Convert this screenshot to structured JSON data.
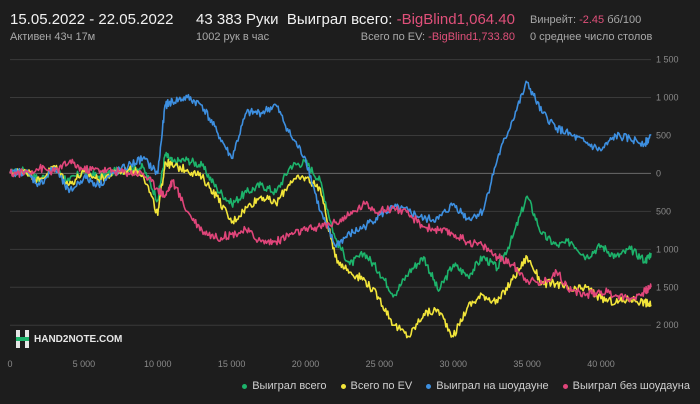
{
  "header": {
    "date_range": "15.05.2022 - 22.05.2022",
    "active": "Активен 43ч 17м",
    "hands": "43 383 Руки",
    "hands_per_hour": "1002 рук в час",
    "won_total_label": "Выиграл всего:",
    "won_total_value": "-BigBlind1,064.40",
    "ev_total_label": "Всего по EV:",
    "ev_total_value": "-BigBlind1,733.80",
    "winrate_label": "Винрейт:",
    "winrate_value": "-2.45",
    "winrate_unit": "бб/100",
    "tables": "0 среднее число столов"
  },
  "logo": {
    "text": "HAND2NOTE.COM"
  },
  "colors": {
    "won": "#1db36b",
    "ev": "#f2e53a",
    "showdown": "#3d8fe0",
    "non_showdown": "#e0457a",
    "negative": "#e0507a"
  },
  "chart_data": {
    "type": "line",
    "title": "",
    "xlabel": "",
    "ylabel": "",
    "xlim": [
      0,
      43383
    ],
    "ylim": [
      -2300,
      1600
    ],
    "y_inverted_label_note": "",
    "x_ticks": [
      0,
      5000,
      10000,
      15000,
      20000,
      25000,
      30000,
      35000,
      40000
    ],
    "x_tick_labels": [
      "0",
      "5 000",
      "10 000",
      "15 000",
      "20 000",
      "25 000",
      "30 000",
      "35 000",
      "40 000"
    ],
    "y_ticks": [
      1500,
      1000,
      500,
      0,
      -500,
      -1000,
      -1500,
      -2000
    ],
    "y_tick_labels": [
      "1 500",
      "1 000",
      "500",
      "0",
      "500",
      "1 000",
      "1 500",
      "2 000"
    ],
    "x": [
      0,
      1000,
      2000,
      3000,
      4000,
      5000,
      6000,
      7000,
      8000,
      9000,
      10000,
      10500,
      11000,
      12000,
      13000,
      14000,
      15000,
      16000,
      17000,
      18000,
      19000,
      20000,
      21000,
      22000,
      23000,
      24000,
      25000,
      26000,
      27000,
      28000,
      29000,
      30000,
      31000,
      32000,
      33000,
      34000,
      35000,
      36000,
      37000,
      38000,
      39000,
      40000,
      41000,
      42000,
      43000,
      43383
    ],
    "series": [
      {
        "name": "Выиграл всего",
        "color": "#1db36b",
        "values": [
          0,
          40,
          -80,
          60,
          -100,
          30,
          -40,
          20,
          60,
          80,
          -350,
          250,
          150,
          180,
          100,
          -200,
          -400,
          -250,
          -150,
          -250,
          100,
          150,
          -100,
          -850,
          -1200,
          -1050,
          -1300,
          -1600,
          -1300,
          -1100,
          -1550,
          -1200,
          -1350,
          -1100,
          -1250,
          -850,
          -300,
          -800,
          -950,
          -900,
          -1100,
          -950,
          -1100,
          -1000,
          -1150,
          -1050
        ]
      },
      {
        "name": "Всего по EV",
        "color": "#f2e53a",
        "values": [
          0,
          50,
          -100,
          100,
          -150,
          20,
          -80,
          0,
          50,
          0,
          -550,
          150,
          100,
          50,
          -50,
          -300,
          -650,
          -450,
          -300,
          -400,
          -100,
          -50,
          -200,
          -1100,
          -1300,
          -1400,
          -1650,
          -2000,
          -2150,
          -1850,
          -1800,
          -2150,
          -1750,
          -1600,
          -1700,
          -1400,
          -1100,
          -1450,
          -1450,
          -1550,
          -1500,
          -1650,
          -1700,
          -1650,
          -1700,
          -1733
        ]
      },
      {
        "name": "Выиграл на шоудауне",
        "color": "#3d8fe0",
        "values": [
          0,
          30,
          -150,
          80,
          -250,
          -50,
          -150,
          0,
          100,
          200,
          0,
          900,
          950,
          1000,
          900,
          550,
          200,
          800,
          800,
          900,
          500,
          200,
          -500,
          -950,
          -800,
          -700,
          -550,
          -450,
          -500,
          -600,
          -600,
          -400,
          -600,
          -500,
          200,
          700,
          1200,
          800,
          600,
          500,
          400,
          300,
          500,
          450,
          400,
          500
        ]
      },
      {
        "name": "Выиграл без шоудауна",
        "color": "#e0457a",
        "values": [
          0,
          10,
          70,
          20,
          150,
          50,
          50,
          30,
          10,
          0,
          -200,
          -300,
          -100,
          -500,
          -750,
          -850,
          -800,
          -750,
          -900,
          -900,
          -800,
          -750,
          -700,
          -650,
          -550,
          -400,
          -500,
          -450,
          -550,
          -700,
          -750,
          -800,
          -900,
          -950,
          -1100,
          -1200,
          -1400,
          -1450,
          -1300,
          -1550,
          -1600,
          -1550,
          -1600,
          -1650,
          -1550,
          -1500
        ]
      }
    ],
    "legend_position": "bottom-right",
    "grid": true
  }
}
